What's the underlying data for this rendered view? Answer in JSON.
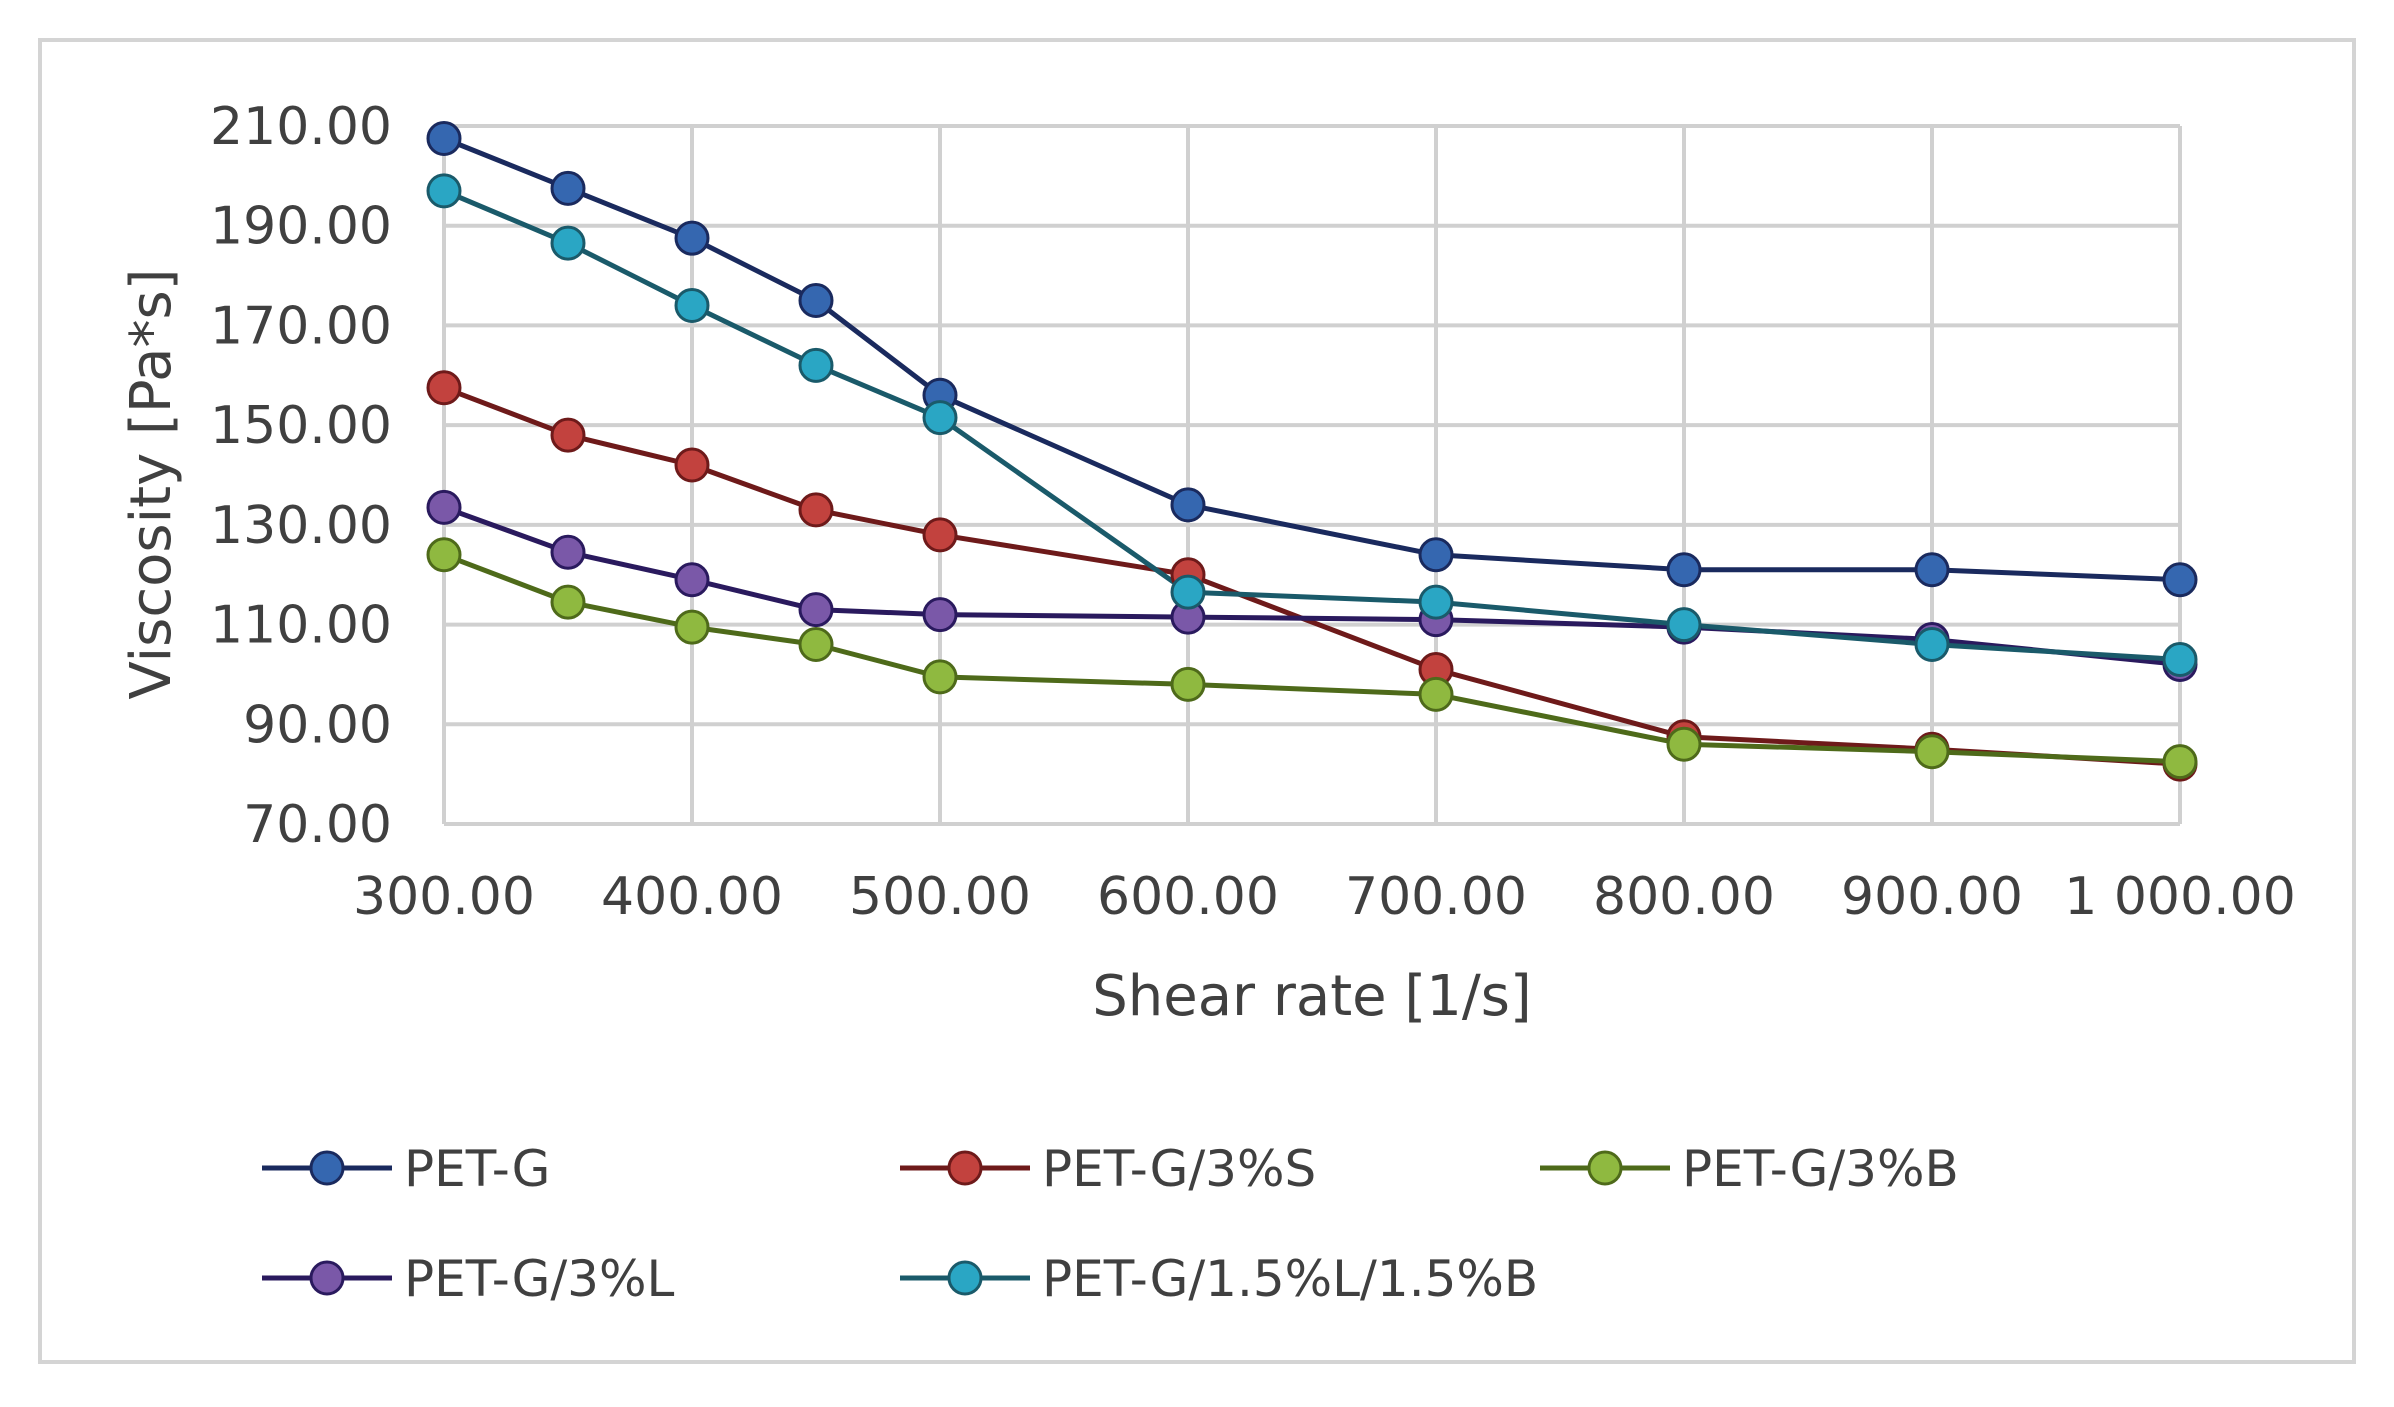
{
  "chart_data": {
    "type": "line",
    "title": "",
    "xlabel": "Shear rate [1/s]",
    "ylabel": "Viscosity [Pa*s]",
    "x": [
      300,
      350,
      400,
      450,
      500,
      600,
      700,
      800,
      900,
      1000
    ],
    "xlim": [
      300,
      1000
    ],
    "ylim": [
      70,
      210
    ],
    "grid": true,
    "legend_position": "bottom",
    "x_ticks": [
      {
        "value": 300,
        "label": "300.00"
      },
      {
        "value": 400,
        "label": "400.00"
      },
      {
        "value": 500,
        "label": "500.00"
      },
      {
        "value": 600,
        "label": "600.00"
      },
      {
        "value": 700,
        "label": "700.00"
      },
      {
        "value": 800,
        "label": "800.00"
      },
      {
        "value": 900,
        "label": "900.00"
      },
      {
        "value": 1000,
        "label": "1 000.00"
      }
    ],
    "y_ticks": [
      {
        "value": 70,
        "label": "70.00"
      },
      {
        "value": 90,
        "label": "90.00"
      },
      {
        "value": 110,
        "label": "110.00"
      },
      {
        "value": 130,
        "label": "130.00"
      },
      {
        "value": 150,
        "label": "150.00"
      },
      {
        "value": 170,
        "label": "170.00"
      },
      {
        "value": 190,
        "label": "190.00"
      },
      {
        "value": 210,
        "label": "210.00"
      }
    ],
    "series": [
      {
        "name": "PET-G",
        "line_color": "#1a2a5e",
        "marker_color": "#3567b0",
        "values": [
          207.5,
          197.5,
          187.5,
          175,
          156,
          134,
          124,
          121,
          121,
          119
        ]
      },
      {
        "name": "PET-G/3%S",
        "line_color": "#6e1a1a",
        "marker_color": "#c2423e",
        "values": [
          157.5,
          148,
          142,
          133,
          128,
          120,
          101,
          87.5,
          85,
          82
        ]
      },
      {
        "name": "PET-G/3%B",
        "line_color": "#4e6a1a",
        "marker_color": "#8fb940",
        "values": [
          124,
          114.5,
          109.5,
          106,
          99.5,
          98,
          96,
          86,
          84.5,
          82.5
        ]
      },
      {
        "name": "PET-G/3%L",
        "line_color": "#2a1a5e",
        "marker_color": "#7a58a8",
        "values": [
          133.5,
          124.5,
          119,
          113,
          112,
          111.5,
          111,
          109.5,
          107,
          102
        ]
      },
      {
        "name": "PET-G/1.5%L/1.5%B",
        "line_color": "#1a5a6a",
        "marker_color": "#2aa6c4",
        "values": [
          197,
          186.5,
          174,
          162,
          151.5,
          116.5,
          114.5,
          110,
          106,
          103
        ]
      }
    ]
  }
}
